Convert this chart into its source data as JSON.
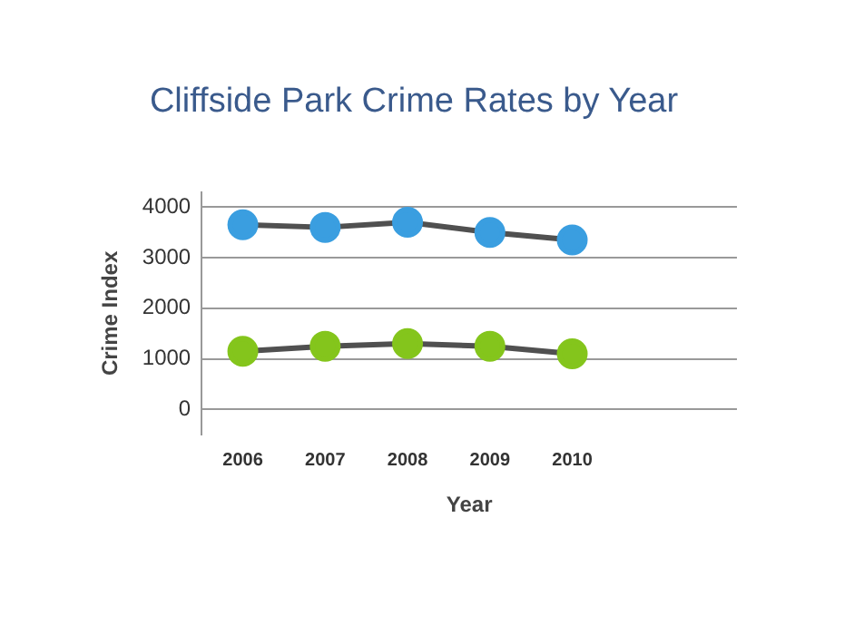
{
  "chart_data": {
    "type": "line",
    "title": "Cliffside Park Crime Rates by Year",
    "xlabel": "Year",
    "ylabel": "Crime Index",
    "x": [
      2006,
      2007,
      2008,
      2009,
      2010
    ],
    "series": [
      {
        "color": "#3a9ee0",
        "values": [
          3650,
          3600,
          3700,
          3500,
          3350
        ]
      },
      {
        "color": "#84c51c",
        "values": [
          1150,
          1250,
          1300,
          1250,
          1100
        ]
      }
    ],
    "xlim": [
      2005.5,
      2012
    ],
    "xticks": [
      2006,
      2007,
      2008,
      2009,
      2010
    ],
    "ylim": [
      -500,
      4300
    ],
    "yticks": [
      0,
      1000,
      2000,
      3000,
      4000
    ],
    "grid": "y",
    "legend": false,
    "marker": "circle",
    "line_style": "solid"
  }
}
